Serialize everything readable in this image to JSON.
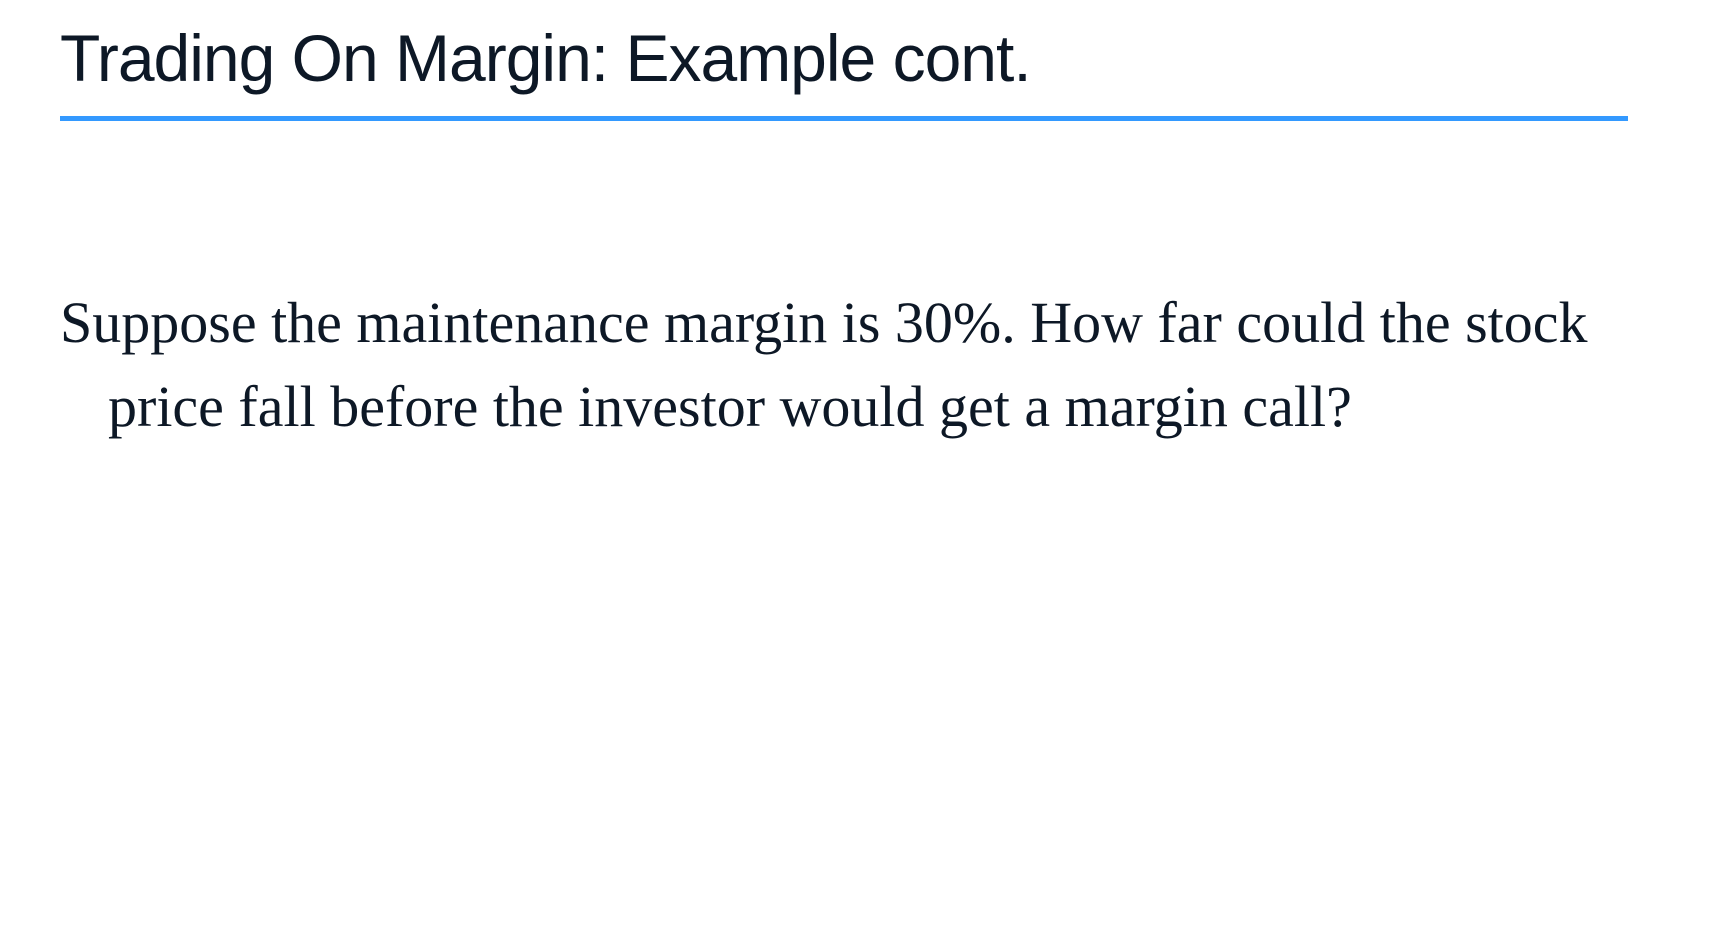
{
  "slide": {
    "title": "Trading On Margin: Example cont.",
    "body_text": "Suppose the maintenance margin is 30%. How far could the stock price fall before the investor would get a margin call?",
    "title_color": "#0d1826",
    "underline_color": "#3399ff",
    "body_color": "#0d1826",
    "background_color": "#ffffff",
    "title_fontsize": 66,
    "body_fontsize": 58,
    "title_font": "Verdana",
    "body_font": "Times New Roman"
  }
}
